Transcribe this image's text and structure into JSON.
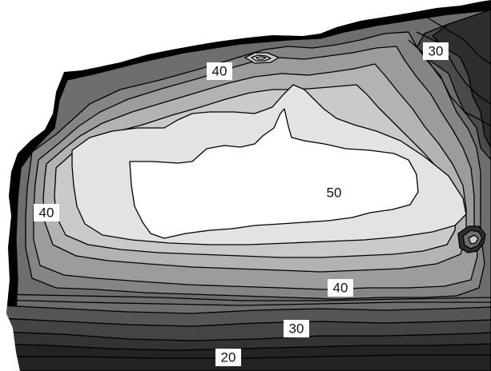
{
  "map": {
    "type": "contour",
    "colors": {
      "outline": "#000000",
      "band_fill": [
        "#1c1c1c",
        "#3a3a3a",
        "#575757",
        "#6e6e6e",
        "#858585",
        "#9c9c9c",
        "#b3b3b3",
        "#cacaca",
        "#e1e1e1",
        "#f2f2f2",
        "#ffffff"
      ],
      "contour_line": "#000000",
      "label_box": "#ffffff"
    },
    "labels": {
      "top": "40",
      "top_right": "30",
      "left": "40",
      "center": "50",
      "lower_center": "40",
      "bottom_mid": "30",
      "bottom": "20"
    }
  }
}
